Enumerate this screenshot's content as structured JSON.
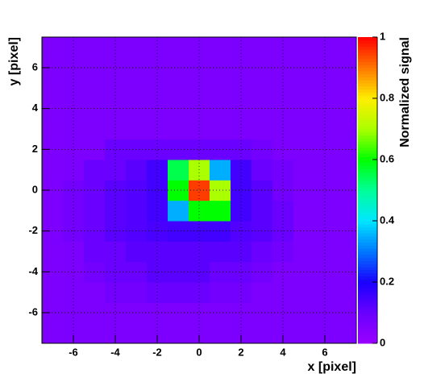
{
  "chart_data": {
    "type": "heatmap",
    "xlabel": "x [pixel]",
    "ylabel": "y [pixel]",
    "zlabel": "Normalized signal",
    "x_bins": [
      -7.5,
      -6.5,
      -5.5,
      -4.5,
      -3.5,
      -2.5,
      -1.5,
      -0.5,
      0.5,
      1.5,
      2.5,
      3.5,
      4.5,
      5.5,
      6.5,
      7.5
    ],
    "y_bins": [
      -7.5,
      -6.5,
      -5.5,
      -4.5,
      -3.5,
      -2.5,
      -1.5,
      -0.5,
      0.5,
      1.5,
      2.5,
      3.5,
      4.5,
      5.5,
      6.5,
      7.5
    ],
    "z": [
      [
        0.06,
        0.06,
        0.06,
        0.06,
        0.06,
        0.06,
        0.06,
        0.06,
        0.06,
        0.06,
        0.06,
        0.06,
        0.06,
        0.06,
        0.06
      ],
      [
        0.06,
        0.06,
        0.06,
        0.06,
        0.06,
        0.06,
        0.06,
        0.06,
        0.06,
        0.06,
        0.06,
        0.06,
        0.06,
        0.06,
        0.06
      ],
      [
        0.06,
        0.06,
        0.06,
        0.08,
        0.08,
        0.1,
        0.1,
        0.1,
        0.08,
        0.08,
        0.06,
        0.06,
        0.06,
        0.06,
        0.06
      ],
      [
        0.06,
        0.06,
        0.08,
        0.1,
        0.1,
        0.12,
        0.12,
        0.12,
        0.1,
        0.1,
        0.08,
        0.06,
        0.06,
        0.06,
        0.06
      ],
      [
        0.06,
        0.06,
        0.1,
        0.1,
        0.12,
        0.12,
        0.12,
        0.12,
        0.12,
        0.12,
        0.1,
        0.08,
        0.06,
        0.06,
        0.06
      ],
      [
        0.06,
        0.08,
        0.1,
        0.12,
        0.13,
        0.14,
        0.15,
        0.15,
        0.15,
        0.13,
        0.12,
        0.1,
        0.06,
        0.06,
        0.06
      ],
      [
        0.06,
        0.08,
        0.1,
        0.12,
        0.13,
        0.15,
        0.35,
        0.6,
        0.6,
        0.15,
        0.12,
        0.1,
        0.06,
        0.06,
        0.06
      ],
      [
        0.06,
        0.08,
        0.1,
        0.12,
        0.13,
        0.15,
        0.6,
        0.95,
        0.7,
        0.15,
        0.12,
        0.08,
        0.06,
        0.06,
        0.06
      ],
      [
        0.06,
        0.06,
        0.1,
        0.1,
        0.12,
        0.15,
        0.55,
        0.7,
        0.35,
        0.15,
        0.1,
        0.08,
        0.06,
        0.06,
        0.06
      ],
      [
        0.06,
        0.06,
        0.06,
        0.1,
        0.1,
        0.1,
        0.1,
        0.1,
        0.1,
        0.1,
        0.08,
        0.06,
        0.06,
        0.06,
        0.06
      ],
      [
        0.06,
        0.06,
        0.06,
        0.06,
        0.06,
        0.06,
        0.06,
        0.06,
        0.06,
        0.06,
        0.06,
        0.06,
        0.06,
        0.06,
        0.06
      ],
      [
        0.06,
        0.06,
        0.06,
        0.06,
        0.06,
        0.06,
        0.06,
        0.06,
        0.06,
        0.06,
        0.06,
        0.06,
        0.06,
        0.06,
        0.06
      ],
      [
        0.06,
        0.06,
        0.06,
        0.06,
        0.06,
        0.06,
        0.06,
        0.06,
        0.06,
        0.06,
        0.06,
        0.06,
        0.06,
        0.06,
        0.06
      ],
      [
        0.06,
        0.06,
        0.06,
        0.06,
        0.06,
        0.06,
        0.06,
        0.06,
        0.06,
        0.06,
        0.06,
        0.06,
        0.06,
        0.06,
        0.06
      ],
      [
        0.06,
        0.06,
        0.06,
        0.06,
        0.06,
        0.06,
        0.06,
        0.06,
        0.06,
        0.06,
        0.06,
        0.06,
        0.06,
        0.06,
        0.06
      ]
    ],
    "xlim": [
      -7.5,
      7.5
    ],
    "ylim": [
      -7.5,
      7.5
    ],
    "zlim": [
      0,
      1
    ],
    "xticks": [
      -6,
      -4,
      -2,
      0,
      2,
      4,
      6
    ],
    "yticks": [
      -6,
      -4,
      -2,
      0,
      2,
      4,
      6
    ],
    "zticks": [
      0,
      0.2,
      0.4,
      0.6,
      0.8,
      1
    ],
    "colorscale": [
      "#9900ff",
      "#6a00ff",
      "#1a00ff",
      "#0077ff",
      "#00e5ff",
      "#00ff99",
      "#00ff00",
      "#aaff00",
      "#ffee00",
      "#ff7700",
      "#ff0000"
    ],
    "grid": true
  }
}
